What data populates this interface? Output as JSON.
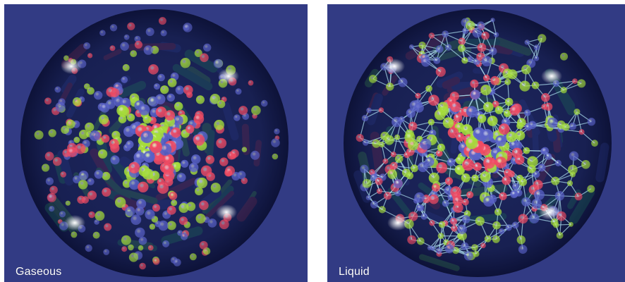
{
  "panels": [
    {
      "id": "gaseous",
      "label": "Gaseous",
      "bonded": false
    },
    {
      "id": "liquid",
      "label": "Liquid",
      "bonded": true
    }
  ],
  "colors": {
    "background": "#323b84",
    "sphere_inner": "#182052",
    "sphere_outer": "#0d1238",
    "molecule_red": "#f04b63",
    "molecule_green": "#a6de3a",
    "molecule_blue": "#5a62c8",
    "bond": "#a8d8e8",
    "highlight": "#ffffff"
  },
  "molecule_types": [
    "red",
    "green",
    "blue"
  ]
}
